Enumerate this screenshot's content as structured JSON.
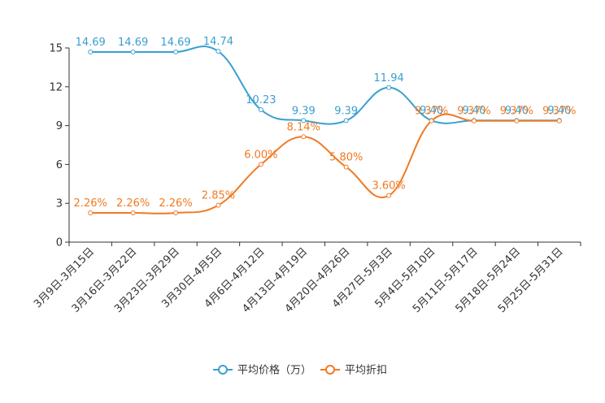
{
  "chart_data": {
    "type": "line",
    "title": "",
    "xlabel": "",
    "ylabel": "",
    "ylim": [
      0,
      15
    ],
    "yticks": [
      0,
      3,
      6,
      9,
      12,
      15
    ],
    "grid": false,
    "legend_position": "bottom",
    "categories": [
      "3月9日-3月15日",
      "3月16日-3月22日",
      "3月23日-3月29日",
      "3月30日-4月5日",
      "4月6日-4月12日",
      "4月13日-4月19日",
      "4月20日-4月26日",
      "4月27日-5月3日",
      "5月4日-5月10日",
      "5月11日-5月17日",
      "5月18日-5月24日",
      "5月25日-5月31日"
    ],
    "series": [
      {
        "name": "平均价格（万）",
        "color": "#3a9fcf",
        "values": [
          14.69,
          14.69,
          14.69,
          14.74,
          10.23,
          9.39,
          9.39,
          11.94,
          9.4,
          9.4,
          9.4,
          9.4
        ],
        "labels": [
          "14.69",
          "14.69",
          "14.69",
          "14.74",
          "10.23",
          "9.39",
          "9.39",
          "11.94",
          "9.40",
          "9.40",
          "9.40",
          "9.40"
        ]
      },
      {
        "name": "平均折扣",
        "color": "#f07a22",
        "values": [
          2.26,
          2.26,
          2.26,
          2.85,
          6.0,
          8.14,
          5.8,
          3.6,
          9.37,
          9.37,
          9.37,
          9.37
        ],
        "labels": [
          "2.26%",
          "2.26%",
          "2.26%",
          "2.85%",
          "6.00%",
          "8.14%",
          "5.80%",
          "3.60%",
          "9.37%",
          "9.37%",
          "9.37%",
          "9.37%"
        ]
      }
    ]
  }
}
